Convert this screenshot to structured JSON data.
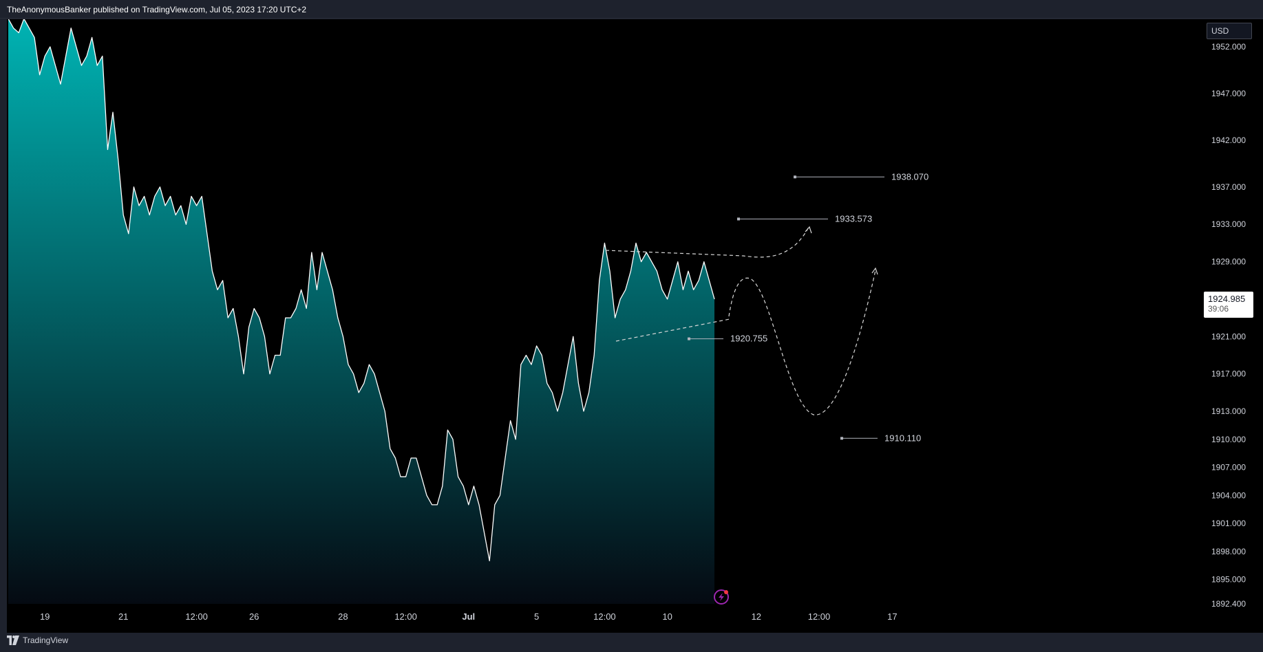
{
  "header": {
    "publisher_text": "TheAnonymousBanker published on TradingView.com, Jul 05, 2023 17:20 UTC+2"
  },
  "footer": {
    "brand": "TradingView"
  },
  "currency_label": "USD",
  "current_price": {
    "value": "1924.985",
    "countdown": "39:06"
  },
  "annotation_labels": [
    "1938.070",
    "1933.573",
    "1920.755",
    "1910.110"
  ],
  "colors": {
    "background": "#000000",
    "chrome": "#1e222d",
    "line": "#ffffff",
    "area_top": "#00b3b3",
    "area_bottom": "#050a12",
    "annotation": "#b2b5be",
    "alert_icon": "#9c27b0",
    "alert_dot": "#f23645"
  },
  "chart_data": {
    "type": "area",
    "y_scale": "linear",
    "ylim": [
      1892.4,
      1954.5
    ],
    "y_ticks": [
      "1952.000",
      "1947.000",
      "1942.000",
      "1937.000",
      "1933.000",
      "1929.000",
      "1921.000",
      "1917.000",
      "1913.000",
      "1910.000",
      "1907.000",
      "1904.000",
      "1901.000",
      "1898.000",
      "1895.000",
      "1892.400"
    ],
    "x_ticks": [
      "19",
      "21",
      "12:00",
      "26",
      "28",
      "12:00",
      "Jul",
      "5",
      "12:00",
      "10",
      "12",
      "12:00",
      "17"
    ],
    "x_tick_indices": [
      7,
      22,
      36,
      47,
      64,
      76,
      88,
      101,
      114,
      126,
      143,
      155,
      169
    ],
    "x_index_range": [
      0,
      176
    ],
    "y": [
      1955,
      1954,
      1953.5,
      1955,
      1954,
      1953,
      1949,
      1951,
      1952,
      1950,
      1948,
      1951,
      1954,
      1952,
      1950,
      1951,
      1953,
      1950,
      1951,
      1941,
      1945,
      1940,
      1934,
      1932,
      1937,
      1935,
      1936,
      1934,
      1936,
      1937,
      1935,
      1936,
      1934,
      1935,
      1933,
      1936,
      1935,
      1936,
      1932,
      1928,
      1926,
      1927,
      1923,
      1924,
      1921,
      1917,
      1922,
      1924,
      1923,
      1921,
      1917,
      1919,
      1919,
      1923,
      1923,
      1924,
      1926,
      1924,
      1930,
      1926,
      1930,
      1928,
      1926,
      1923,
      1921,
      1918,
      1917,
      1915,
      1916,
      1918,
      1917,
      1915,
      1913,
      1909,
      1908,
      1906,
      1906,
      1908,
      1908,
      1906,
      1904,
      1903,
      1903,
      1905,
      1911,
      1910,
      1906,
      1905,
      1903,
      1905,
      1903,
      1900,
      1897,
      1903,
      1904,
      1908,
      1912,
      1910,
      1918,
      1919,
      1918,
      1920,
      1919,
      1916,
      1915,
      1913,
      1915,
      1918,
      1921,
      1916,
      1913,
      1915,
      1919,
      1927,
      1931,
      1928,
      1923,
      1925,
      1926,
      1928,
      1931,
      1929,
      1930,
      1929,
      1928,
      1926,
      1925,
      1927,
      1929,
      1926,
      1928,
      1926,
      1927,
      1929,
      1927,
      1925
    ],
    "annotations": [
      {
        "type": "price_line",
        "label": "1938.070",
        "value": 1938.07
      },
      {
        "type": "price_line",
        "label": "1933.573",
        "value": 1933.573
      },
      {
        "type": "price_line",
        "label": "1920.755",
        "value": 1920.755
      },
      {
        "type": "price_line",
        "label": "1910.110",
        "value": 1910.11
      }
    ],
    "grid": false,
    "legend": "none"
  }
}
